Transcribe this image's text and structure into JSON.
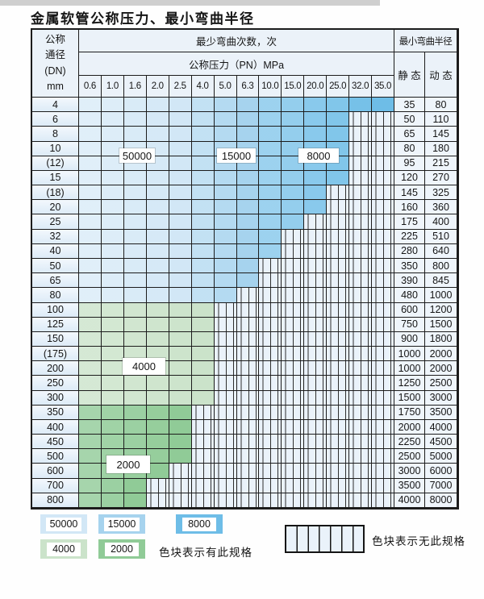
{
  "page": {
    "title": "金属软管公称压力、最小弯曲半径"
  },
  "colors": {
    "c50000": "#d2e7f6",
    "c15000": "#a6d3ee",
    "c8000": "#6ebde7",
    "c4000": "#cbe3ca",
    "c2000": "#90cb97",
    "hatch_bg": "#eaf2fa",
    "hatch_line": "#2e2e2e",
    "header_bg": "#ebf2f9",
    "border": "#1c1c1c"
  },
  "table": {
    "header": {
      "dn_lines": [
        "公称",
        "通径",
        "(DN)",
        "mm"
      ],
      "cycles_label": "最少弯曲次数，次",
      "pressure_label": "公称压力（PN）MPa",
      "radius_label": "最小弯曲半径",
      "static_label": "静 态",
      "dynamic_label": "动 态",
      "pressure_columns": [
        "0.6",
        "1.0",
        "1.6",
        "2.0",
        "2.5",
        "4.0",
        "5.0",
        "6.3",
        "10.0",
        "15.0",
        "20.0",
        "25.0",
        "32.0",
        "35.0"
      ]
    },
    "blue_bands": [
      {
        "cycles": "50000",
        "columns": [
          "0.6",
          "1.0",
          "1.6",
          "2.0",
          "2.5"
        ]
      },
      {
        "cycles": "15000",
        "columns": [
          "4.0",
          "5.0",
          "6.3"
        ]
      },
      {
        "cycles": "8000",
        "columns": [
          "10.0",
          "15.0",
          "20.0",
          "25.0",
          "32.0",
          "35.0"
        ]
      }
    ],
    "rows": [
      {
        "dn": "4",
        "group": "blue",
        "spec_through": "35.0",
        "static": "35",
        "dynamic": "80"
      },
      {
        "dn": "6",
        "group": "blue",
        "spec_through": "25.0",
        "static": "50",
        "dynamic": "110"
      },
      {
        "dn": "8",
        "group": "blue",
        "spec_through": "25.0",
        "static": "65",
        "dynamic": "145"
      },
      {
        "dn": "10",
        "group": "blue",
        "spec_through": "25.0",
        "static": "80",
        "dynamic": "180"
      },
      {
        "dn": "(12)",
        "group": "blue",
        "spec_through": "25.0",
        "static": "95",
        "dynamic": "215"
      },
      {
        "dn": "15",
        "group": "blue",
        "spec_through": "25.0",
        "static": "120",
        "dynamic": "270"
      },
      {
        "dn": "(18)",
        "group": "blue",
        "spec_through": "20.0",
        "static": "145",
        "dynamic": "325"
      },
      {
        "dn": "20",
        "group": "blue",
        "spec_through": "20.0",
        "static": "160",
        "dynamic": "360"
      },
      {
        "dn": "25",
        "group": "blue",
        "spec_through": "15.0",
        "static": "175",
        "dynamic": "400"
      },
      {
        "dn": "32",
        "group": "blue",
        "spec_through": "10.0",
        "static": "225",
        "dynamic": "510"
      },
      {
        "dn": "40",
        "group": "blue",
        "spec_through": "10.0",
        "static": "280",
        "dynamic": "640"
      },
      {
        "dn": "50",
        "group": "blue",
        "spec_through": "6.3",
        "static": "350",
        "dynamic": "800"
      },
      {
        "dn": "65",
        "group": "blue",
        "spec_through": "6.3",
        "static": "390",
        "dynamic": "845"
      },
      {
        "dn": "80",
        "group": "blue",
        "spec_through": "5.0",
        "static": "480",
        "dynamic": "1000"
      },
      {
        "dn": "100",
        "group": "green4000",
        "spec_through": "4.0",
        "static": "600",
        "dynamic": "1200"
      },
      {
        "dn": "125",
        "group": "green4000",
        "spec_through": "4.0",
        "static": "750",
        "dynamic": "1500"
      },
      {
        "dn": "150",
        "group": "green4000",
        "spec_through": "4.0",
        "static": "900",
        "dynamic": "1800"
      },
      {
        "dn": "(175)",
        "group": "green4000",
        "spec_through": "4.0",
        "static": "1000",
        "dynamic": "2000"
      },
      {
        "dn": "200",
        "group": "green4000",
        "spec_through": "4.0",
        "static": "1000",
        "dynamic": "2000"
      },
      {
        "dn": "250",
        "group": "green4000",
        "spec_through": "4.0",
        "static": "1250",
        "dynamic": "2500"
      },
      {
        "dn": "300",
        "group": "green4000",
        "spec_through": "4.0",
        "static": "1500",
        "dynamic": "3000"
      },
      {
        "dn": "350",
        "group": "green2000",
        "spec_through": "2.5",
        "static": "1750",
        "dynamic": "3500"
      },
      {
        "dn": "400",
        "group": "green2000",
        "spec_through": "2.5",
        "static": "2000",
        "dynamic": "4000"
      },
      {
        "dn": "450",
        "group": "green2000",
        "spec_through": "2.5",
        "static": "2250",
        "dynamic": "4500"
      },
      {
        "dn": "500",
        "group": "green2000",
        "spec_through": "2.5",
        "static": "2500",
        "dynamic": "5000"
      },
      {
        "dn": "600",
        "group": "green2000",
        "spec_through": "2.0",
        "static": "3000",
        "dynamic": "6000"
      },
      {
        "dn": "700",
        "group": "green2000",
        "spec_through": "1.6",
        "static": "3500",
        "dynamic": "7000"
      },
      {
        "dn": "800",
        "group": "green2000",
        "spec_through": "1.6",
        "static": "4000",
        "dynamic": "8000"
      }
    ]
  },
  "overlays": [
    "50000",
    "15000",
    "8000",
    "4000",
    "2000"
  ],
  "legend": {
    "items": [
      {
        "label": "50000",
        "color": "c50000"
      },
      {
        "label": "15000",
        "color": "c15000"
      },
      {
        "label": "8000",
        "color": "c8000"
      },
      {
        "label": "4000",
        "color": "c4000"
      },
      {
        "label": "2000",
        "color": "c2000"
      }
    ],
    "has_note": "色块表示有此规格",
    "none_note": "色块表示无此规格"
  }
}
